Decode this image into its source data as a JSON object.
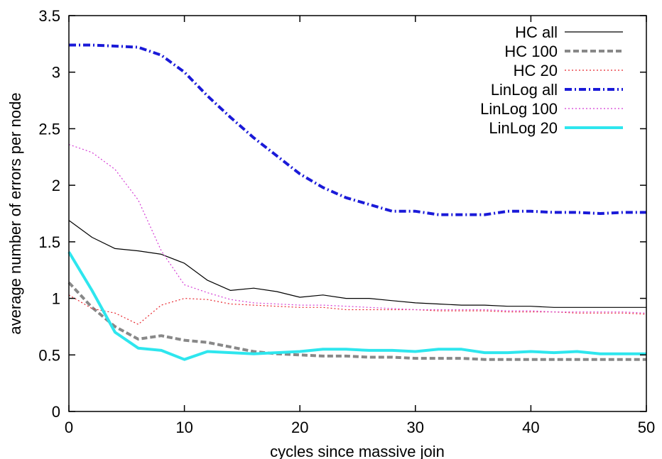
{
  "chart_data": {
    "type": "line",
    "title": "",
    "xlabel": "cycles since massive join",
    "ylabel": "average number of errors per node",
    "xlim": [
      0,
      50
    ],
    "ylim": [
      0,
      3.5
    ],
    "xticks": [
      "0",
      "10",
      "20",
      "30",
      "40",
      "50"
    ],
    "yticks": [
      "0",
      "0.5",
      "1",
      "1.5",
      "2",
      "2.5",
      "3",
      "3.5"
    ],
    "grid": false,
    "legend_position": "top-right",
    "x": [
      0,
      2,
      4,
      6,
      8,
      10,
      12,
      14,
      16,
      18,
      20,
      22,
      24,
      26,
      28,
      30,
      32,
      34,
      36,
      38,
      40,
      42,
      44,
      46,
      48,
      50
    ],
    "series": [
      {
        "name": "HC all",
        "color": "#000000",
        "style": "solid-thin",
        "values": [
          1.69,
          1.54,
          1.44,
          1.42,
          1.39,
          1.31,
          1.16,
          1.07,
          1.09,
          1.06,
          1.01,
          1.03,
          1.0,
          1.0,
          0.98,
          0.96,
          0.95,
          0.94,
          0.94,
          0.93,
          0.93,
          0.92,
          0.92,
          0.92,
          0.92,
          0.92
        ]
      },
      {
        "name": "HC 100",
        "color": "#888888",
        "style": "dashed-thick",
        "values": [
          1.14,
          0.92,
          0.75,
          0.64,
          0.67,
          0.63,
          0.61,
          0.57,
          0.53,
          0.51,
          0.5,
          0.49,
          0.49,
          0.48,
          0.48,
          0.47,
          0.47,
          0.47,
          0.46,
          0.46,
          0.46,
          0.46,
          0.46,
          0.46,
          0.46,
          0.46
        ]
      },
      {
        "name": "HC 20",
        "color": "#e8262d",
        "style": "dotted-thin",
        "values": [
          1.03,
          0.91,
          0.87,
          0.77,
          0.94,
          1.0,
          0.99,
          0.95,
          0.94,
          0.93,
          0.92,
          0.92,
          0.9,
          0.9,
          0.9,
          0.9,
          0.89,
          0.89,
          0.89,
          0.88,
          0.88,
          0.88,
          0.87,
          0.87,
          0.87,
          0.86
        ]
      },
      {
        "name": "LinLog all",
        "color": "#1a1ad8",
        "style": "dashdot-thick",
        "values": [
          3.24,
          3.24,
          3.23,
          3.22,
          3.15,
          3.0,
          2.79,
          2.6,
          2.42,
          2.26,
          2.1,
          1.98,
          1.89,
          1.83,
          1.77,
          1.77,
          1.74,
          1.74,
          1.74,
          1.77,
          1.77,
          1.76,
          1.76,
          1.75,
          1.76,
          1.76
        ]
      },
      {
        "name": "LinLog 100",
        "color": "#d53cd5",
        "style": "dotted-thin",
        "values": [
          2.36,
          2.29,
          2.14,
          1.87,
          1.42,
          1.12,
          1.05,
          0.99,
          0.96,
          0.95,
          0.94,
          0.94,
          0.93,
          0.92,
          0.91,
          0.9,
          0.9,
          0.9,
          0.9,
          0.89,
          0.89,
          0.88,
          0.88,
          0.88,
          0.88,
          0.87
        ]
      },
      {
        "name": "LinLog 20",
        "color": "#2ee6ee",
        "style": "solid-thick",
        "values": [
          1.41,
          1.07,
          0.7,
          0.56,
          0.54,
          0.46,
          0.53,
          0.52,
          0.51,
          0.52,
          0.53,
          0.55,
          0.55,
          0.54,
          0.54,
          0.53,
          0.55,
          0.55,
          0.52,
          0.52,
          0.53,
          0.52,
          0.53,
          0.51,
          0.51,
          0.51
        ]
      }
    ]
  }
}
